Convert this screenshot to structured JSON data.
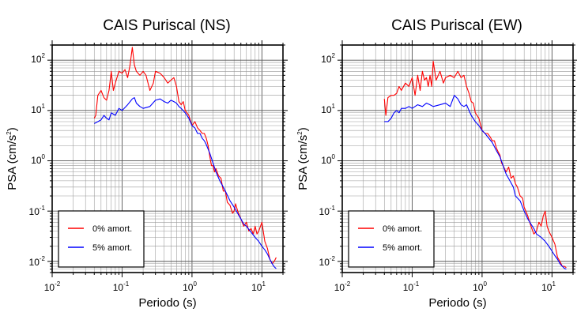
{
  "chart_data": [
    {
      "type": "line",
      "title": "CAIS Puriscal (NS)",
      "xlabel": "Periodo (s)",
      "ylabel": "PSA (cm/s",
      "ylabel_sup": "2",
      "ylabel_close": ")",
      "x_scale": "log",
      "y_scale": "log",
      "xlim": [
        0.01,
        20
      ],
      "ylim": [
        0.006,
        200
      ],
      "x_ticks": [
        {
          "base": "10",
          "exp": "-2"
        },
        {
          "base": "10",
          "exp": "-1"
        },
        {
          "base": "10",
          "exp": "0"
        },
        {
          "base": "10",
          "exp": "1"
        }
      ],
      "y_ticks": [
        {
          "base": "10",
          "exp": "-2"
        },
        {
          "base": "10",
          "exp": "-1"
        },
        {
          "base": "10",
          "exp": "0"
        },
        {
          "base": "10",
          "exp": "1"
        },
        {
          "base": "10",
          "exp": "2"
        }
      ],
      "grid": true,
      "legend_position": "bottom-left",
      "series": [
        {
          "name": "0% amort.",
          "color": "#ff0000",
          "points": [
            [
              0.04,
              7
            ],
            [
              0.042,
              8
            ],
            [
              0.045,
              20
            ],
            [
              0.05,
              25
            ],
            [
              0.055,
              18
            ],
            [
              0.06,
              16
            ],
            [
              0.065,
              25
            ],
            [
              0.07,
              60
            ],
            [
              0.075,
              25
            ],
            [
              0.08,
              35
            ],
            [
              0.09,
              60
            ],
            [
              0.1,
              55
            ],
            [
              0.11,
              65
            ],
            [
              0.12,
              45
            ],
            [
              0.13,
              80
            ],
            [
              0.14,
              180
            ],
            [
              0.15,
              80
            ],
            [
              0.16,
              60
            ],
            [
              0.18,
              50
            ],
            [
              0.2,
              60
            ],
            [
              0.22,
              50
            ],
            [
              0.25,
              25
            ],
            [
              0.28,
              35
            ],
            [
              0.3,
              60
            ],
            [
              0.35,
              55
            ],
            [
              0.4,
              45
            ],
            [
              0.45,
              35
            ],
            [
              0.5,
              40
            ],
            [
              0.55,
              45
            ],
            [
              0.6,
              30
            ],
            [
              0.65,
              15
            ],
            [
              0.7,
              13
            ],
            [
              0.75,
              15
            ],
            [
              0.8,
              10
            ],
            [
              0.9,
              8
            ],
            [
              1.0,
              5
            ],
            [
              1.1,
              6
            ],
            [
              1.2,
              4.5
            ],
            [
              1.3,
              4
            ],
            [
              1.4,
              3.5
            ],
            [
              1.5,
              3.5
            ],
            [
              1.6,
              2.8
            ],
            [
              1.7,
              2
            ],
            [
              1.8,
              1.2
            ],
            [
              1.9,
              0.8
            ],
            [
              2.0,
              0.8
            ],
            [
              2.1,
              0.6
            ],
            [
              2.2,
              0.7
            ],
            [
              2.4,
              0.5
            ],
            [
              2.6,
              0.45
            ],
            [
              2.8,
              0.25
            ],
            [
              3.0,
              0.25
            ],
            [
              3.2,
              0.15
            ],
            [
              3.5,
              0.13
            ],
            [
              3.8,
              0.09
            ],
            [
              4.0,
              0.1
            ],
            [
              4.2,
              0.14
            ],
            [
              4.5,
              0.1
            ],
            [
              5.0,
              0.07
            ],
            [
              5.5,
              0.05
            ],
            [
              6.0,
              0.06
            ],
            [
              6.5,
              0.04
            ],
            [
              7.0,
              0.045
            ],
            [
              7.5,
              0.035
            ],
            [
              8.0,
              0.05
            ],
            [
              8.5,
              0.035
            ],
            [
              9.0,
              0.04
            ],
            [
              10.0,
              0.06
            ],
            [
              11.0,
              0.025
            ],
            [
              12.0,
              0.018
            ],
            [
              13.0,
              0.011
            ],
            [
              14.0,
              0.009
            ],
            [
              15.0,
              0.01
            ],
            [
              16.0,
              0.012
            ]
          ]
        },
        {
          "name": "5% amort.",
          "color": "#0000ff",
          "points": [
            [
              0.04,
              5.5
            ],
            [
              0.045,
              6
            ],
            [
              0.05,
              6.5
            ],
            [
              0.055,
              8
            ],
            [
              0.06,
              7
            ],
            [
              0.065,
              6.5
            ],
            [
              0.07,
              9
            ],
            [
              0.08,
              8
            ],
            [
              0.09,
              11
            ],
            [
              0.1,
              10
            ],
            [
              0.12,
              13
            ],
            [
              0.14,
              17
            ],
            [
              0.15,
              18
            ],
            [
              0.16,
              14
            ],
            [
              0.18,
              12
            ],
            [
              0.2,
              11
            ],
            [
              0.25,
              12
            ],
            [
              0.3,
              16
            ],
            [
              0.35,
              17
            ],
            [
              0.4,
              15
            ],
            [
              0.45,
              14
            ],
            [
              0.5,
              16
            ],
            [
              0.55,
              15
            ],
            [
              0.6,
              14
            ],
            [
              0.65,
              12
            ],
            [
              0.7,
              11
            ],
            [
              0.8,
              9
            ],
            [
              0.9,
              7
            ],
            [
              1.0,
              5
            ],
            [
              1.1,
              4.5
            ],
            [
              1.2,
              3.5
            ],
            [
              1.3,
              3.5
            ],
            [
              1.4,
              2.8
            ],
            [
              1.5,
              2.5
            ],
            [
              1.6,
              2.1
            ],
            [
              1.8,
              1.4
            ],
            [
              2.0,
              0.9
            ],
            [
              2.2,
              0.6
            ],
            [
              2.5,
              0.4
            ],
            [
              2.8,
              0.3
            ],
            [
              3.0,
              0.25
            ],
            [
              3.5,
              0.16
            ],
            [
              4.0,
              0.12
            ],
            [
              4.5,
              0.09
            ],
            [
              5.0,
              0.07
            ],
            [
              5.5,
              0.055
            ],
            [
              6.0,
              0.05
            ],
            [
              7.0,
              0.038
            ],
            [
              8.0,
              0.03
            ],
            [
              9.0,
              0.025
            ],
            [
              10.0,
              0.02
            ],
            [
              11.0,
              0.017
            ],
            [
              12.0,
              0.014
            ],
            [
              13.0,
              0.011
            ],
            [
              14.0,
              0.009
            ],
            [
              15.0,
              0.0078
            ],
            [
              16.0,
              0.0072
            ]
          ]
        }
      ]
    },
    {
      "type": "line",
      "title": "CAIS Puriscal (EW)",
      "xlabel": "Periodo (s)",
      "ylabel": "PSA (cm/s",
      "ylabel_sup": "2",
      "ylabel_close": ")",
      "x_scale": "log",
      "y_scale": "log",
      "xlim": [
        0.01,
        20
      ],
      "ylim": [
        0.006,
        200
      ],
      "x_ticks": [
        {
          "base": "10",
          "exp": "-2"
        },
        {
          "base": "10",
          "exp": "-1"
        },
        {
          "base": "10",
          "exp": "0"
        },
        {
          "base": "10",
          "exp": "1"
        }
      ],
      "y_ticks": [
        {
          "base": "10",
          "exp": "-2"
        },
        {
          "base": "10",
          "exp": "-1"
        },
        {
          "base": "10",
          "exp": "0"
        },
        {
          "base": "10",
          "exp": "1"
        },
        {
          "base": "10",
          "exp": "2"
        }
      ],
      "grid": true,
      "legend_position": "bottom-left",
      "series": [
        {
          "name": "0% amort.",
          "color": "#ff0000",
          "points": [
            [
              0.04,
              17
            ],
            [
              0.042,
              8
            ],
            [
              0.045,
              18
            ],
            [
              0.05,
              20
            ],
            [
              0.055,
              20
            ],
            [
              0.06,
              22
            ],
            [
              0.065,
              30
            ],
            [
              0.07,
              25
            ],
            [
              0.08,
              35
            ],
            [
              0.09,
              30
            ],
            [
              0.1,
              45
            ],
            [
              0.11,
              20
            ],
            [
              0.12,
              50
            ],
            [
              0.13,
              25
            ],
            [
              0.14,
              60
            ],
            [
              0.15,
              40
            ],
            [
              0.16,
              45
            ],
            [
              0.17,
              30
            ],
            [
              0.18,
              50
            ],
            [
              0.19,
              30
            ],
            [
              0.2,
              95
            ],
            [
              0.22,
              40
            ],
            [
              0.25,
              60
            ],
            [
              0.28,
              35
            ],
            [
              0.3,
              45
            ],
            [
              0.35,
              50
            ],
            [
              0.4,
              45
            ],
            [
              0.45,
              60
            ],
            [
              0.5,
              45
            ],
            [
              0.55,
              50
            ],
            [
              0.6,
              30
            ],
            [
              0.65,
              22
            ],
            [
              0.7,
              15
            ],
            [
              0.75,
              14
            ],
            [
              0.8,
              9
            ],
            [
              0.9,
              7
            ],
            [
              1.0,
              4
            ],
            [
              1.1,
              3.5
            ],
            [
              1.2,
              3.5
            ],
            [
              1.3,
              3
            ],
            [
              1.4,
              2.5
            ],
            [
              1.5,
              2.5
            ],
            [
              1.6,
              1.8
            ],
            [
              1.7,
              1.5
            ],
            [
              1.8,
              1.3
            ],
            [
              1.9,
              0.9
            ],
            [
              2.0,
              0.8
            ],
            [
              2.2,
              0.6
            ],
            [
              2.4,
              0.75
            ],
            [
              2.6,
              0.45
            ],
            [
              2.8,
              0.5
            ],
            [
              3.0,
              0.35
            ],
            [
              3.2,
              0.3
            ],
            [
              3.5,
              0.2
            ],
            [
              3.8,
              0.18
            ],
            [
              4.0,
              0.12
            ],
            [
              4.5,
              0.08
            ],
            [
              5.0,
              0.05
            ],
            [
              5.5,
              0.035
            ],
            [
              6.0,
              0.04
            ],
            [
              6.5,
              0.06
            ],
            [
              7.0,
              0.05
            ],
            [
              7.5,
              0.08
            ],
            [
              8.0,
              0.1
            ],
            [
              8.5,
              0.05
            ],
            [
              9.0,
              0.04
            ],
            [
              10.0,
              0.03
            ],
            [
              11.0,
              0.022
            ],
            [
              12.0,
              0.012
            ],
            [
              13.0,
              0.01
            ],
            [
              14.0,
              0.008
            ],
            [
              15.0,
              0.008
            ],
            [
              16.0,
              0.0075
            ]
          ]
        },
        {
          "name": "5% amort.",
          "color": "#0000ff",
          "points": [
            [
              0.04,
              6
            ],
            [
              0.045,
              6
            ],
            [
              0.05,
              7
            ],
            [
              0.055,
              9
            ],
            [
              0.06,
              10
            ],
            [
              0.065,
              9
            ],
            [
              0.07,
              11
            ],
            [
              0.08,
              11
            ],
            [
              0.09,
              12
            ],
            [
              0.1,
              11
            ],
            [
              0.12,
              13
            ],
            [
              0.14,
              12
            ],
            [
              0.16,
              14
            ],
            [
              0.18,
              13
            ],
            [
              0.2,
              12
            ],
            [
              0.25,
              13
            ],
            [
              0.3,
              14
            ],
            [
              0.35,
              12
            ],
            [
              0.4,
              20
            ],
            [
              0.45,
              17
            ],
            [
              0.5,
              13
            ],
            [
              0.55,
              12
            ],
            [
              0.6,
              13
            ],
            [
              0.65,
              10
            ],
            [
              0.7,
              8
            ],
            [
              0.8,
              6
            ],
            [
              0.9,
              5
            ],
            [
              1.0,
              4
            ],
            [
              1.1,
              3.5
            ],
            [
              1.2,
              3
            ],
            [
              1.4,
              2.3
            ],
            [
              1.6,
              1.6
            ],
            [
              1.8,
              1.2
            ],
            [
              2.0,
              0.8
            ],
            [
              2.2,
              0.55
            ],
            [
              2.5,
              0.4
            ],
            [
              2.8,
              0.3
            ],
            [
              3.0,
              0.2
            ],
            [
              3.5,
              0.16
            ],
            [
              4.0,
              0.1
            ],
            [
              4.5,
              0.07
            ],
            [
              5.0,
              0.055
            ],
            [
              5.5,
              0.045
            ],
            [
              6.0,
              0.035
            ],
            [
              7.0,
              0.03
            ],
            [
              8.0,
              0.025
            ],
            [
              9.0,
              0.02
            ],
            [
              10.0,
              0.016
            ],
            [
              11.0,
              0.013
            ],
            [
              12.0,
              0.011
            ],
            [
              13.0,
              0.009
            ],
            [
              14.0,
              0.008
            ],
            [
              15.0,
              0.0073
            ],
            [
              16.0,
              0.007
            ]
          ]
        }
      ]
    }
  ]
}
